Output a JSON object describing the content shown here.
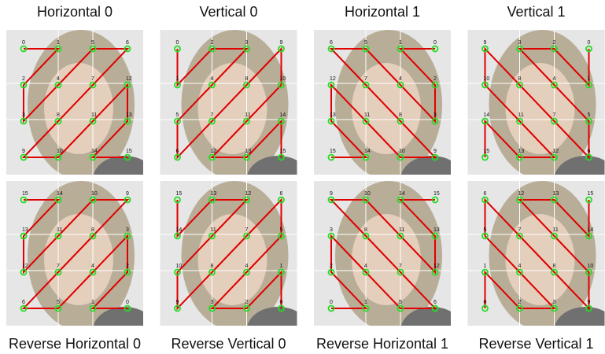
{
  "panels": [
    {
      "title": "Horizontal 0",
      "grid": [
        [
          0,
          1,
          5,
          6
        ],
        [
          2,
          4,
          7,
          12
        ],
        [
          3,
          8,
          11,
          13
        ],
        [
          9,
          10,
          14,
          15
        ]
      ]
    },
    {
      "title": "Vertical 0",
      "grid": [
        [
          0,
          2,
          3,
          9
        ],
        [
          1,
          4,
          8,
          10
        ],
        [
          5,
          7,
          11,
          14
        ],
        [
          6,
          12,
          13,
          15
        ]
      ]
    },
    {
      "title": "Horizontal 1",
      "grid": [
        [
          6,
          5,
          1,
          0
        ],
        [
          12,
          7,
          4,
          2
        ],
        [
          13,
          11,
          8,
          3
        ],
        [
          15,
          14,
          10,
          9
        ]
      ]
    },
    {
      "title": "Vertical 1",
      "grid": [
        [
          9,
          3,
          2,
          0
        ],
        [
          10,
          8,
          4,
          1
        ],
        [
          14,
          11,
          7,
          5
        ],
        [
          15,
          13,
          12,
          6
        ]
      ]
    },
    {
      "title": "Reverse Horizontal 0",
      "grid": [
        [
          15,
          14,
          10,
          9
        ],
        [
          13,
          11,
          8,
          3
        ],
        [
          12,
          7,
          4,
          2
        ],
        [
          6,
          5,
          1,
          0
        ]
      ]
    },
    {
      "title": "Reverse Vertical 0",
      "grid": [
        [
          15,
          13,
          12,
          6
        ],
        [
          14,
          11,
          7,
          5
        ],
        [
          10,
          8,
          4,
          1
        ],
        [
          9,
          3,
          2,
          0
        ]
      ]
    },
    {
      "title": "Reverse Horizontal 1",
      "grid": [
        [
          9,
          10,
          14,
          15
        ],
        [
          3,
          8,
          11,
          13
        ],
        [
          2,
          4,
          7,
          12
        ],
        [
          0,
          1,
          5,
          6
        ]
      ]
    },
    {
      "title": "Reverse Vertical 1",
      "grid": [
        [
          6,
          12,
          13,
          15
        ],
        [
          5,
          7,
          11,
          14
        ],
        [
          1,
          4,
          8,
          10
        ],
        [
          0,
          2,
          3,
          9
        ]
      ]
    }
  ]
}
